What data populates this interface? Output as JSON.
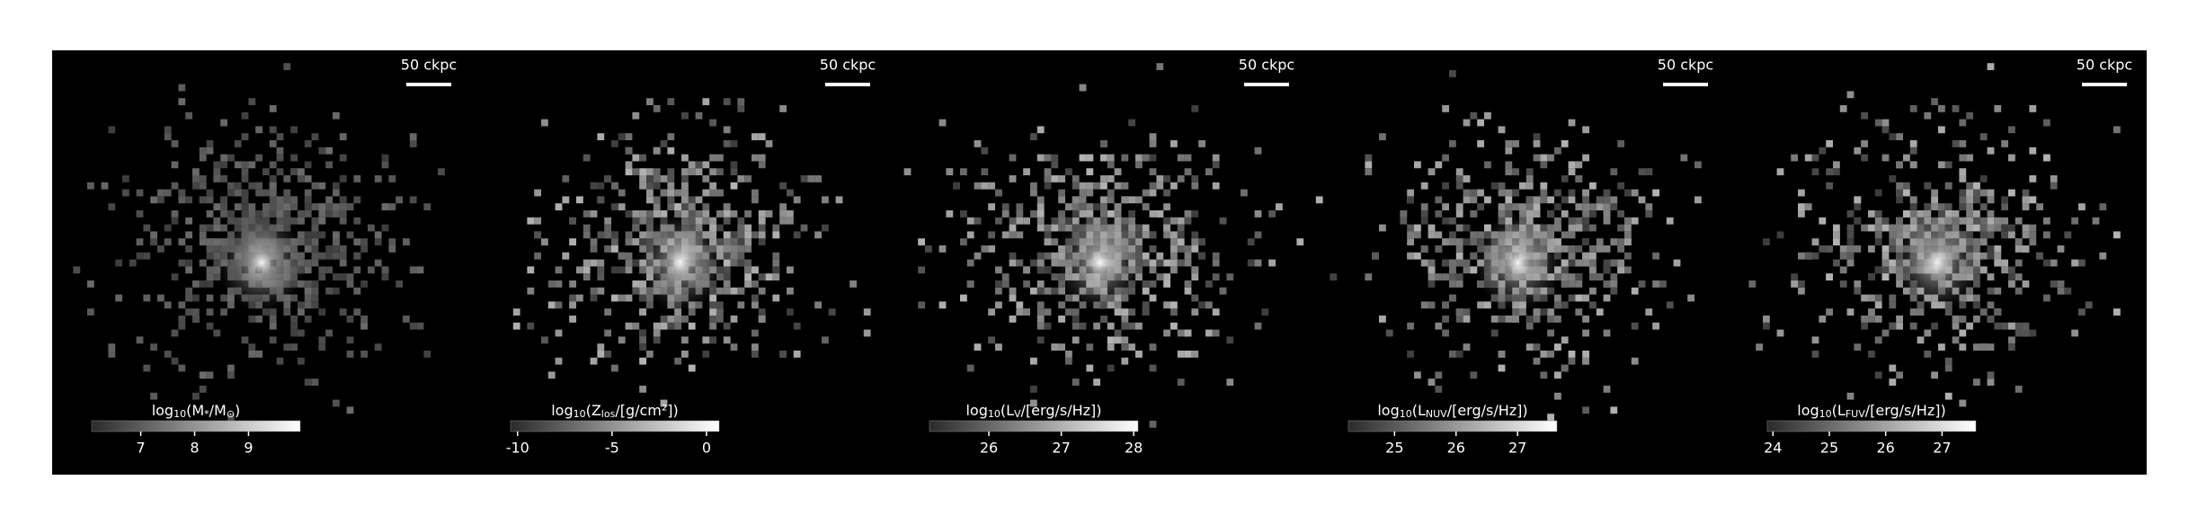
{
  "chart_data": [
    {
      "type": "image",
      "scalebar": "50 ckpc",
      "colorbar_label": [
        "log",
        "10",
        "(M",
        "*",
        "/M",
        "⊙",
        ")"
      ],
      "clim": [
        6.09,
        9.96
      ],
      "ticks": [
        7,
        8,
        9
      ],
      "cmap": [
        "#2a2a2a",
        "#ffffff"
      ]
    },
    {
      "type": "image",
      "scalebar": "50 ckpc",
      "colorbar_label": [
        "log",
        "10",
        "(Z",
        "los",
        "/[g/cm²])"
      ],
      "clim": [
        -10.37,
        0.67
      ],
      "ticks": [
        -10,
        -5,
        0
      ],
      "cmap": [
        "#2a2a2a",
        "#ffffff"
      ]
    },
    {
      "type": "image",
      "scalebar": "50 ckpc",
      "colorbar_label": [
        "log",
        "10",
        "(L",
        "V",
        "/[erg/s/Hz])"
      ],
      "clim": [
        25.18,
        28.06
      ],
      "ticks": [
        26,
        27,
        28
      ],
      "cmap": [
        "#2a2a2a",
        "#ffffff"
      ]
    },
    {
      "type": "image",
      "scalebar": "50 ckpc",
      "colorbar_label": [
        "log",
        "10",
        "(L",
        "NUV",
        "/[erg/s/Hz])"
      ],
      "clim": [
        24.25,
        27.64
      ],
      "ticks": [
        25,
        26,
        27
      ],
      "cmap": [
        "#2a2a2a",
        "#ffffff"
      ]
    },
    {
      "type": "image",
      "scalebar": "50 ckpc",
      "colorbar_label": [
        "log",
        "10",
        "(L",
        "FUV",
        "/[erg/s/Hz])"
      ],
      "clim": [
        23.9,
        27.6
      ],
      "ticks": [
        24,
        25,
        26,
        27
      ],
      "cmap": [
        "#2a2a2a",
        "#ffffff"
      ]
    }
  ]
}
